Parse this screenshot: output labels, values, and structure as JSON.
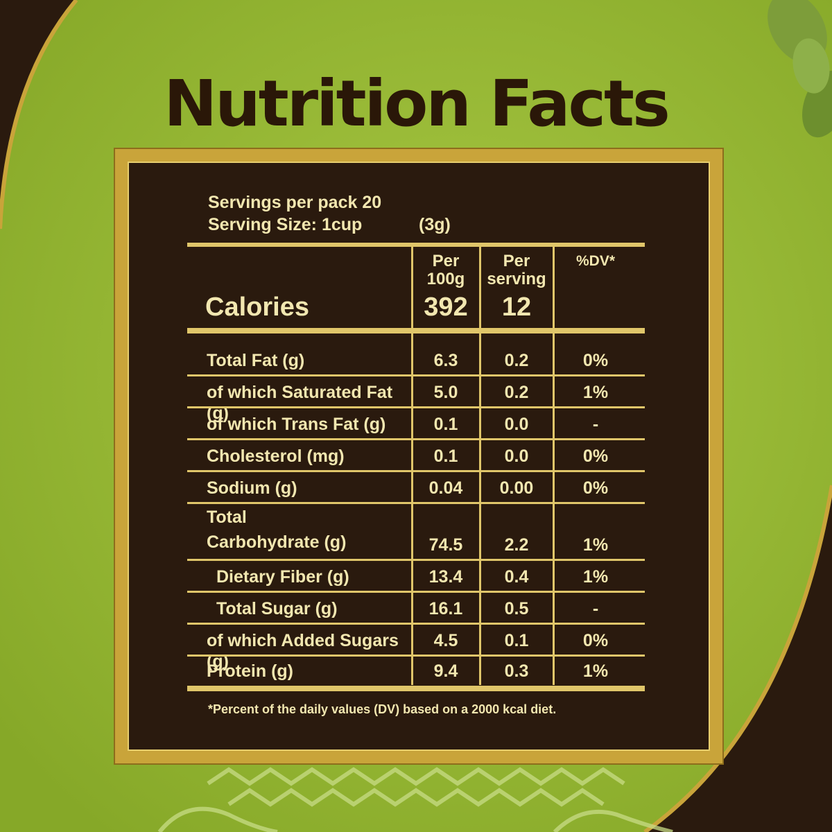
{
  "title": "Nutrition Facts",
  "colors": {
    "green": "#9bbd3c",
    "dark_brown": "#2a1a0e",
    "gold": "#c9a43a",
    "cream": "#f2e7b0"
  },
  "servings": {
    "per_pack": "Servings per pack 20",
    "size": "Serving Size: 1cup",
    "size_grams": "(3g)"
  },
  "table": {
    "headers": {
      "per100": [
        "Per",
        "100g"
      ],
      "perServing": [
        "Per",
        "serving"
      ],
      "dv": "%DV*"
    },
    "calories": {
      "label": "Calories",
      "per100": "392",
      "perServing": "12"
    },
    "rows": [
      {
        "label": "Total Fat (g)",
        "per100": "6.3",
        "perServing": "0.2",
        "dv": "0%"
      },
      {
        "label": "of which Saturated Fat (g)",
        "per100": "5.0",
        "perServing": "0.2",
        "dv": "1%"
      },
      {
        "label": "of which Trans Fat (g)",
        "per100": "0.1",
        "perServing": "0.0",
        "dv": "-"
      },
      {
        "label": "Cholesterol (mg)",
        "per100": "0.1",
        "perServing": "0.0",
        "dv": "0%"
      },
      {
        "label": "Sodium (g)",
        "per100": "0.04",
        "perServing": "0.00",
        "dv": "0%"
      },
      {
        "label": "Total",
        "label2": "Carbohydrate (g)",
        "per100": "74.5",
        "perServing": "2.2",
        "dv": "1%"
      },
      {
        "label": "Dietary Fiber (g)",
        "per100": "13.4",
        "perServing": "0.4",
        "dv": "1%"
      },
      {
        "label": "Total Sugar (g)",
        "per100": "16.1",
        "perServing": "0.5",
        "dv": "-"
      },
      {
        "label": "of which Added Sugars (g)",
        "per100": "4.5",
        "perServing": "0.1",
        "dv": "0%"
      },
      {
        "label": "Protein (g)",
        "per100": "9.4",
        "perServing": "0.3",
        "dv": "1%"
      }
    ]
  },
  "footnote": "*Percent of the daily values (DV) based on a 2000 kcal diet.",
  "decor": {
    "top_right": "cardamom-pods-icon",
    "bottom": "geometric-pattern-icon"
  }
}
